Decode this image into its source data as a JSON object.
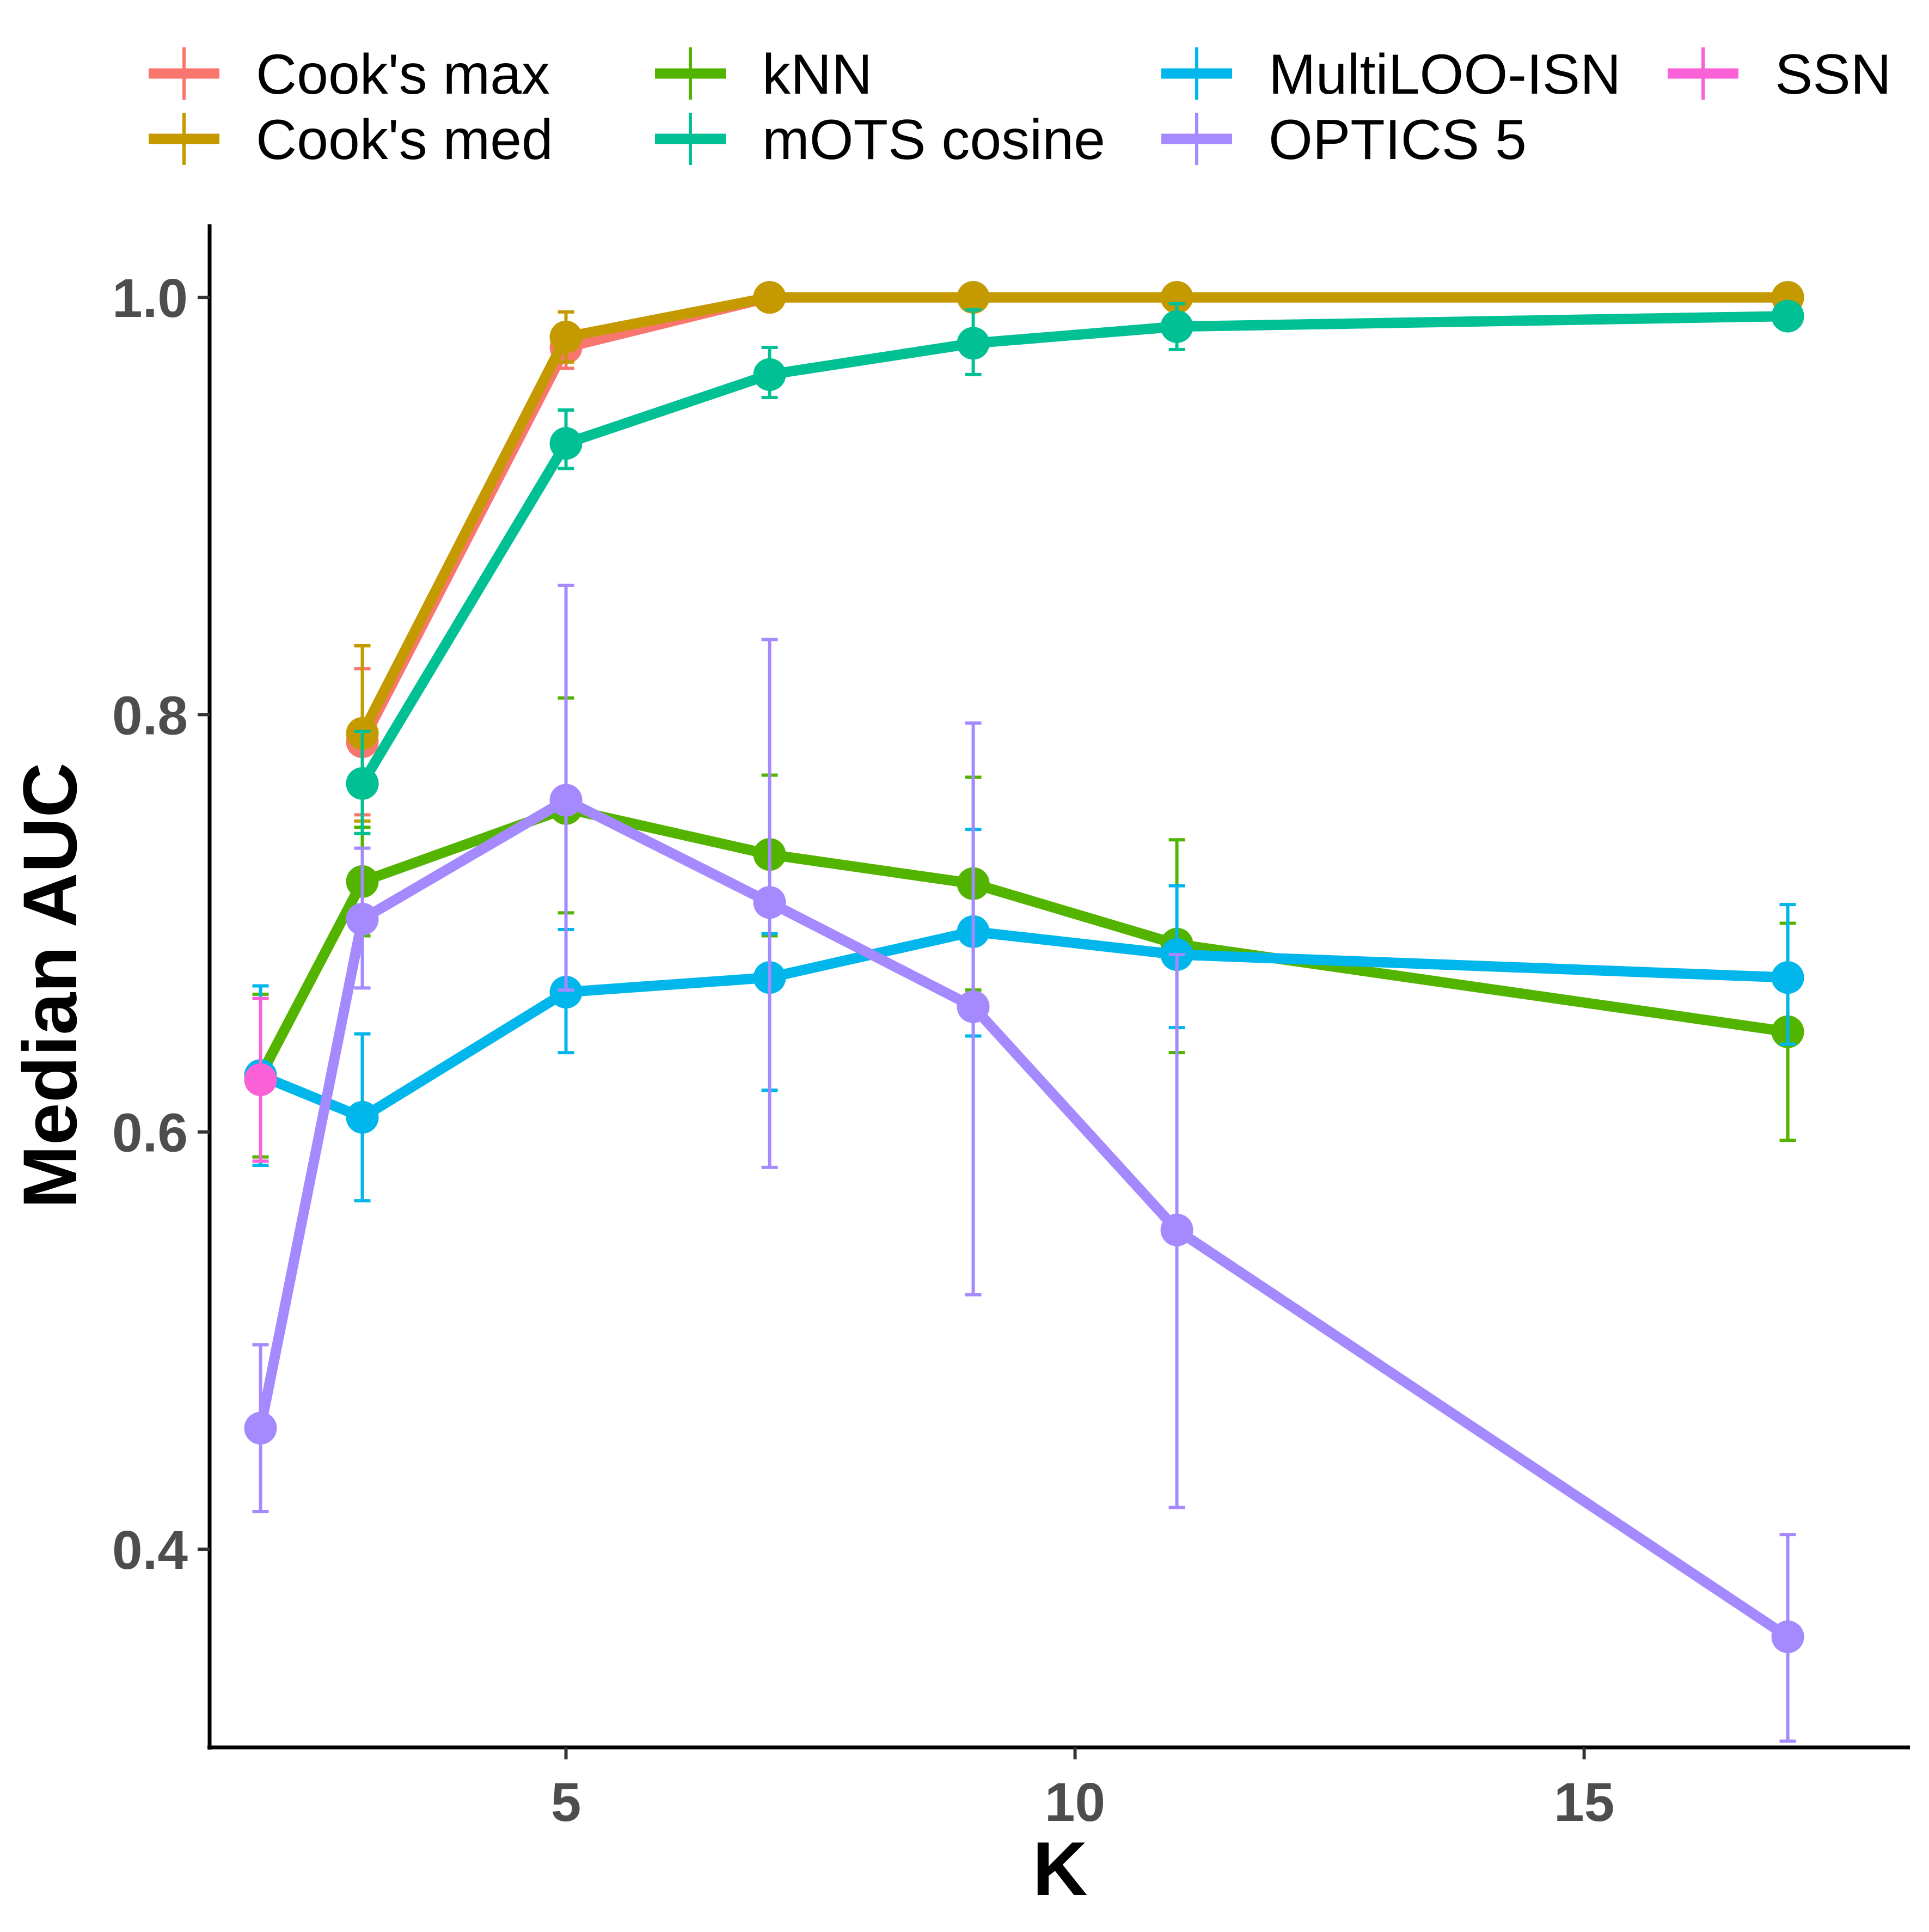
{
  "chart_data": {
    "type": "line",
    "xlabel": "K",
    "ylabel": "Median AUC",
    "xlim": [
      1.5,
      18.2
    ],
    "ylim": [
      0.305,
      1.035
    ],
    "xticks": [
      5,
      10,
      15
    ],
    "yticks": [
      0.4,
      0.6,
      0.8,
      1.0
    ],
    "xtick_labels": [
      "5",
      "10",
      "15"
    ],
    "ytick_labels": [
      "0.4",
      "0.6",
      "0.8",
      "1.0"
    ],
    "grid": false,
    "legend_position": "top",
    "series": [
      {
        "name": "Cook's max",
        "color": "#F8766D",
        "x": [
          3,
          5,
          7,
          9,
          11,
          17
        ],
        "y": [
          0.787,
          0.976,
          1.0,
          1.0,
          1.0,
          1.0
        ],
        "ylo": [
          0.752,
          0.966,
          1.0,
          1.0,
          1.0,
          1.0
        ],
        "yhi": [
          0.822,
          0.987,
          1.0,
          1.0,
          1.0,
          1.0
        ]
      },
      {
        "name": "Cook's med",
        "color": "#C49A00",
        "x": [
          3,
          5,
          7,
          9,
          11,
          17
        ],
        "y": [
          0.791,
          0.981,
          1.0,
          1.0,
          1.0,
          1.0
        ],
        "ylo": [
          0.749,
          0.969,
          1.0,
          1.0,
          1.0,
          1.0
        ],
        "yhi": [
          0.833,
          0.993,
          1.0,
          1.0,
          1.0,
          1.0
        ]
      },
      {
        "name": "kNN",
        "color": "#53B400",
        "x": [
          2,
          3,
          5,
          7,
          9,
          11,
          17
        ],
        "y": [
          0.627,
          0.72,
          0.755,
          0.733,
          0.719,
          0.69,
          0.648
        ],
        "ylo": [
          0.588,
          0.694,
          0.705,
          0.694,
          0.668,
          0.638,
          0.596
        ],
        "yhi": [
          0.666,
          0.746,
          0.808,
          0.771,
          0.77,
          0.74,
          0.7
        ]
      },
      {
        "name": "mOTS cosine",
        "color": "#00C094",
        "x": [
          3,
          5,
          7,
          9,
          11,
          17
        ],
        "y": [
          0.767,
          0.93,
          0.963,
          0.978,
          0.986,
          0.991
        ],
        "ylo": [
          0.743,
          0.918,
          0.952,
          0.963,
          0.975,
          0.986
        ],
        "yhi": [
          0.792,
          0.946,
          0.976,
          0.994,
          0.997,
          0.997
        ]
      },
      {
        "name": "MultiLOO-ISN",
        "color": "#00B6EB",
        "x": [
          2,
          3,
          5,
          7,
          9,
          11,
          17
        ],
        "y": [
          0.627,
          0.607,
          0.667,
          0.674,
          0.696,
          0.685,
          0.674
        ],
        "ylo": [
          0.584,
          0.567,
          0.638,
          0.62,
          0.646,
          0.65,
          0.642
        ],
        "yhi": [
          0.67,
          0.647,
          0.697,
          0.695,
          0.745,
          0.718,
          0.709
        ]
      },
      {
        "name": "OPTICS 5",
        "color": "#A58AFF",
        "x": [
          2,
          3,
          5,
          7,
          9,
          11,
          17
        ],
        "y": [
          0.458,
          0.702,
          0.759,
          0.71,
          0.66,
          0.553,
          0.358
        ],
        "ylo": [
          0.418,
          0.669,
          0.668,
          0.583,
          0.522,
          0.42,
          0.308
        ],
        "yhi": [
          0.498,
          0.736,
          0.862,
          0.836,
          0.796,
          0.685,
          0.407
        ]
      },
      {
        "name": "SSN",
        "color": "#FB61D7",
        "x": [
          2
        ],
        "y": [
          0.625
        ],
        "ylo": [
          0.586
        ],
        "yhi": [
          0.664
        ]
      }
    ]
  }
}
